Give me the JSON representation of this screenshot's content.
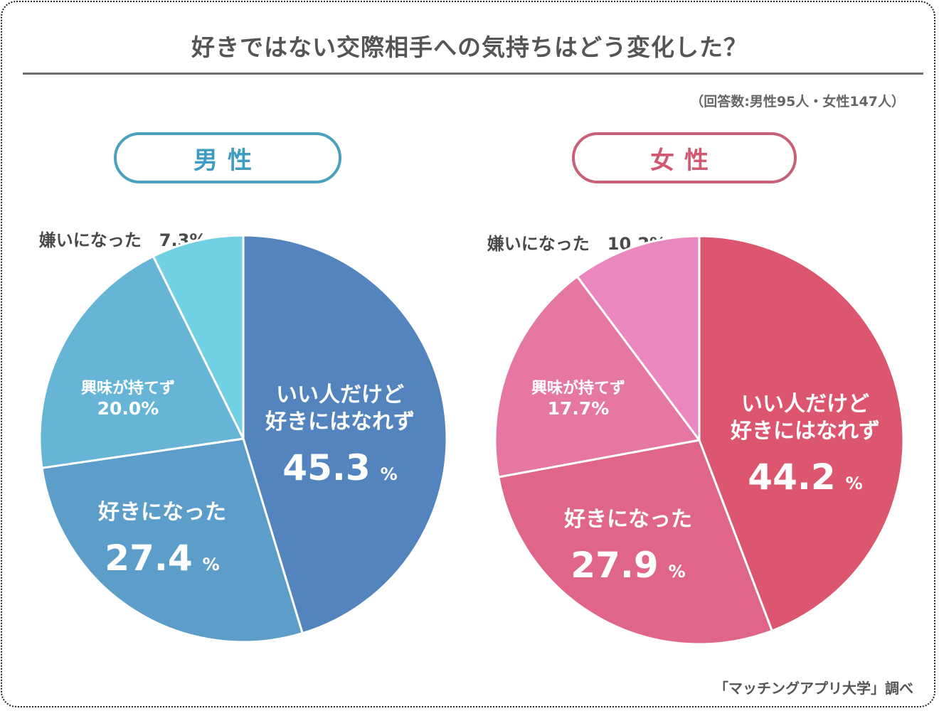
{
  "title": "好きではない交際相手への気持ちはどう変化した？",
  "respondents": "（回答数:男性95人・女性147人）",
  "source": "「マッチングアプリ大学」調べ",
  "chart_data": [
    {
      "type": "pie",
      "title": "男性",
      "start_angle": "12 o'clock",
      "direction": "clockwise",
      "slices": [
        {
          "label": "いい人だけど好きにはなれず",
          "label_lines": [
            "いい人だけど",
            "好きにはなれず"
          ],
          "value": 45.3,
          "value_text": "45.3",
          "unit": "%",
          "color": "#5384bd"
        },
        {
          "label": "好きになった",
          "label_lines": [
            "好きになった"
          ],
          "value": 27.4,
          "value_text": "27.4",
          "unit": "%",
          "color": "#5c9ec9"
        },
        {
          "label": "興味が持てず",
          "label_lines": [
            "興味が持てず"
          ],
          "value": 20.0,
          "value_text": "20.0%",
          "unit": "",
          "color": "#66b5d6"
        },
        {
          "label": "嫌いになった",
          "label_lines": [
            "嫌いになった"
          ],
          "value": 7.3,
          "value_text": "7.3%",
          "unit": "",
          "color": "#72d0e3",
          "outside": true
        }
      ]
    },
    {
      "type": "pie",
      "title": "女性",
      "start_angle": "12 o'clock",
      "direction": "clockwise",
      "slices": [
        {
          "label": "いい人だけど好きにはなれず",
          "label_lines": [
            "いい人だけど",
            "好きにはなれず"
          ],
          "value": 44.2,
          "value_text": "44.2",
          "unit": "%",
          "color": "#dc566f"
        },
        {
          "label": "好きになった",
          "label_lines": [
            "好きになった"
          ],
          "value": 27.9,
          "value_text": "27.9",
          "unit": "%",
          "color": "#e06689"
        },
        {
          "label": "興味が持てず",
          "label_lines": [
            "興味が持てず"
          ],
          "value": 17.7,
          "value_text": "17.7%",
          "unit": "",
          "color": "#e577a2"
        },
        {
          "label": "嫌いになった",
          "label_lines": [
            "嫌いになった"
          ],
          "value": 10.2,
          "value_text": "10.2%",
          "unit": "",
          "color": "#e987be",
          "outside": true
        }
      ]
    }
  ]
}
